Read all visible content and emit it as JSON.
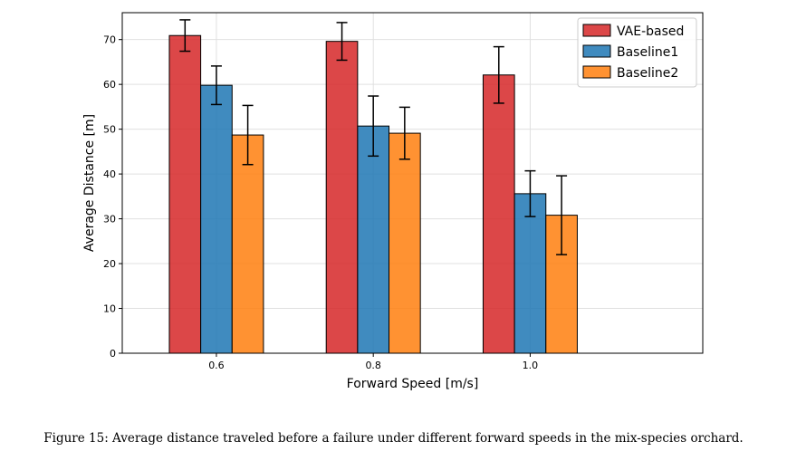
{
  "chart_data": {
    "type": "bar",
    "title": "",
    "xlabel": "Forward Speed [m/s]",
    "ylabel": "Average Distance [m]",
    "categories": [
      "0.6",
      "0.8",
      "1.0"
    ],
    "ylim": [
      0,
      76
    ],
    "yticks": [
      0,
      10,
      20,
      30,
      40,
      50,
      60,
      70
    ],
    "grid": true,
    "legend_position": "top-right",
    "series": [
      {
        "name": "VAE-based",
        "color": "#d62728",
        "values": [
          70.9,
          69.6,
          62.1
        ],
        "errors": [
          3.5,
          4.2,
          6.3
        ]
      },
      {
        "name": "Baseline1",
        "color": "#1f77b4",
        "values": [
          59.8,
          50.7,
          35.6
        ],
        "errors": [
          4.3,
          6.7,
          5.1
        ]
      },
      {
        "name": "Baseline2",
        "color": "#ff7f0e",
        "values": [
          48.7,
          49.1,
          30.8
        ],
        "errors": [
          6.6,
          5.8,
          8.8
        ]
      }
    ]
  },
  "caption": "Figure 15: Average distance traveled before a failure under different forward speeds in the mix-species orchard."
}
